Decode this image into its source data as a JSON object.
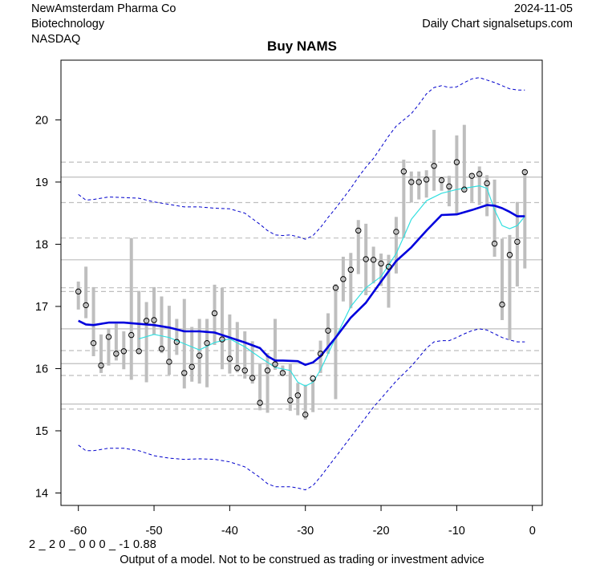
{
  "header": {
    "company": "NewAmsterdam Pharma Co",
    "sector": "Biotechnology",
    "exchange": "NASDAQ",
    "date": "2024-11-05",
    "source": "Daily Chart signalsetups.com"
  },
  "footer": {
    "code": "2 _ 2 0 _ 0 0 0 _ -1 0.88",
    "disclaimer": "Output of a model. Not to be construed as trading or investment advice"
  },
  "colors": {
    "bar": "#bebebe",
    "slow_ma": "#0000dd",
    "fast_ma": "#33e0e0",
    "band": "#0000cc",
    "level": "#bebebe"
  },
  "chart_data": {
    "type": "line",
    "title": "Buy NAMS",
    "xlabel": "",
    "ylabel": "",
    "xlim": [
      -62.3,
      1.3
    ],
    "ylim": [
      13.8,
      20.96
    ],
    "x_ticks": [
      -60,
      -50,
      -40,
      -30,
      -20,
      -10,
      0
    ],
    "y_ticks": [
      14,
      15,
      16,
      17,
      18,
      19,
      20
    ],
    "grid": false,
    "days": [
      -60,
      -59,
      -58,
      -57,
      -56,
      -55,
      -54,
      -53,
      -52,
      -51,
      -50,
      -49,
      -48,
      -47,
      -46,
      -45,
      -44,
      -43,
      -42,
      -41,
      -40,
      -39,
      -38,
      -37,
      -36,
      -35,
      -34,
      -33,
      -32,
      -31,
      -30,
      -29,
      -28,
      -27,
      -26,
      -25,
      -24,
      -23,
      -22,
      -21,
      -20,
      -19,
      -18,
      -17,
      -16,
      -15,
      -14,
      -13,
      -12,
      -11,
      -10,
      -9,
      -8,
      -7,
      -6,
      -5,
      -4,
      -3,
      -2,
      -1
    ],
    "close": [
      17.24,
      17.02,
      16.41,
      16.05,
      16.51,
      16.24,
      16.28,
      16.54,
      16.28,
      16.77,
      16.78,
      16.32,
      16.11,
      16.43,
      15.93,
      16.03,
      16.21,
      16.41,
      16.89,
      16.47,
      16.16,
      16.01,
      15.97,
      15.85,
      15.45,
      15.97,
      16.07,
      15.93,
      15.49,
      15.57,
      15.26,
      15.84,
      16.24,
      16.61,
      17.3,
      17.44,
      17.59,
      18.22,
      17.76,
      17.75,
      17.69,
      17.64,
      18.2,
      19.17,
      19.0,
      19.0,
      19.04,
      19.26,
      19.03,
      18.93,
      19.32,
      18.88,
      19.1,
      19.13,
      18.98,
      18.01,
      17.03,
      17.83,
      18.04,
      19.16
    ],
    "high": [
      17.4,
      17.64,
      17.31,
      16.55,
      16.65,
      16.72,
      16.6,
      18.1,
      17.25,
      17.07,
      17.31,
      17.16,
      17.01,
      16.8,
      17.12,
      16.67,
      16.8,
      16.8,
      17.35,
      17.3,
      16.87,
      16.75,
      16.6,
      16.44,
      16.07,
      16.25,
      16.8,
      16.05,
      16.07,
      15.77,
      15.74,
      15.84,
      16.45,
      16.89,
      17.36,
      17.8,
      17.86,
      18.39,
      18.33,
      17.96,
      17.85,
      17.83,
      18.44,
      19.36,
      19.17,
      19.17,
      19.19,
      19.84,
      19.08,
      19.1,
      19.75,
      19.92,
      19.14,
      19.25,
      19.11,
      19.04,
      18.09,
      18.15,
      18.68,
      19.21
    ],
    "low": [
      16.95,
      16.81,
      16.2,
      15.93,
      16.05,
      16.13,
      15.99,
      15.82,
      16.24,
      15.78,
      16.54,
      16.25,
      15.9,
      16.22,
      15.68,
      15.79,
      15.76,
      15.7,
      16.38,
      15.99,
      15.92,
      15.94,
      15.84,
      15.76,
      15.33,
      15.29,
      15.98,
      15.9,
      15.32,
      15.25,
      15.18,
      15.3,
      15.93,
      16.24,
      15.51,
      17.08,
      16.97,
      17.52,
      17.18,
      17.37,
      17.33,
      16.98,
      17.53,
      18.1,
      18.67,
      18.72,
      18.75,
      18.86,
      18.86,
      18.61,
      18.48,
      18.84,
      18.68,
      18.63,
      18.45,
      17.8,
      16.78,
      16.46,
      17.32,
      17.61
    ],
    "series": [
      {
        "name": "slow_ma",
        "x": [
          -60,
          -59,
          -58,
          -56,
          -54,
          -52,
          -50,
          -48,
          -46,
          -44,
          -42,
          -40,
          -38,
          -36,
          -35,
          -34,
          -33,
          -31,
          -30,
          -29,
          -28,
          -26,
          -24,
          -22,
          -20,
          -18,
          -16,
          -14,
          -12,
          -10,
          -8,
          -6,
          -5,
          -4,
          -3,
          -2,
          -1
        ],
        "y": [
          16.77,
          16.71,
          16.7,
          16.74,
          16.74,
          16.72,
          16.7,
          16.66,
          16.6,
          16.6,
          16.58,
          16.5,
          16.42,
          16.33,
          16.2,
          16.13,
          16.13,
          16.12,
          16.06,
          16.1,
          16.2,
          16.5,
          16.82,
          17.06,
          17.4,
          17.73,
          17.95,
          18.22,
          18.47,
          18.48,
          18.55,
          18.63,
          18.62,
          18.58,
          18.52,
          18.45,
          18.45
        ]
      },
      {
        "name": "fast_ma",
        "x": [
          -52,
          -50,
          -48,
          -46,
          -44,
          -42,
          -40,
          -38,
          -36,
          -34,
          -32,
          -31,
          -30,
          -29,
          -28,
          -26,
          -24,
          -22,
          -20,
          -18,
          -17,
          -16,
          -14,
          -12,
          -10,
          -8,
          -7,
          -6,
          -5,
          -4,
          -3,
          -2,
          -1
        ],
        "y": [
          16.48,
          16.55,
          16.5,
          16.4,
          16.3,
          16.42,
          16.48,
          16.35,
          16.18,
          16.02,
          15.97,
          15.78,
          15.72,
          15.78,
          15.98,
          16.5,
          17.0,
          17.3,
          17.48,
          17.85,
          18.12,
          18.4,
          18.7,
          18.82,
          18.88,
          18.92,
          18.94,
          18.9,
          18.55,
          18.3,
          18.25,
          18.3,
          18.45
        ]
      },
      {
        "name": "upper_band",
        "x": [
          -60,
          -59,
          -58,
          -56,
          -54,
          -52,
          -50,
          -48,
          -46,
          -44,
          -42,
          -40,
          -38,
          -36,
          -35,
          -34,
          -33,
          -32,
          -31,
          -30,
          -29,
          -28,
          -27,
          -26,
          -25,
          -24,
          -23,
          -22,
          -21,
          -20,
          -19,
          -18,
          -17,
          -16,
          -15,
          -14,
          -13,
          -12,
          -11,
          -10,
          -9,
          -8,
          -7,
          -6,
          -5,
          -4,
          -3,
          -2,
          -1
        ],
        "y": [
          18.8,
          18.71,
          18.72,
          18.76,
          18.75,
          18.74,
          18.68,
          18.64,
          18.6,
          18.6,
          18.58,
          18.57,
          18.5,
          18.32,
          18.22,
          18.15,
          18.14,
          18.15,
          18.12,
          18.08,
          18.14,
          18.27,
          18.43,
          18.58,
          18.74,
          18.9,
          19.08,
          19.24,
          19.38,
          19.56,
          19.74,
          19.9,
          20.0,
          20.1,
          20.25,
          20.42,
          20.52,
          20.55,
          20.52,
          20.53,
          20.6,
          20.66,
          20.68,
          20.64,
          20.6,
          20.55,
          20.5,
          20.48,
          20.48
        ]
      },
      {
        "name": "lower_band",
        "x": [
          -60,
          -59,
          -58,
          -56,
          -54,
          -52,
          -50,
          -48,
          -46,
          -44,
          -42,
          -40,
          -38,
          -36,
          -35,
          -34,
          -33,
          -32,
          -31,
          -30,
          -29,
          -28,
          -27,
          -26,
          -25,
          -24,
          -23,
          -22,
          -21,
          -20,
          -19,
          -18,
          -17,
          -16,
          -15,
          -14,
          -13,
          -12,
          -11,
          -10,
          -9,
          -8,
          -7,
          -6,
          -5,
          -4,
          -3,
          -2,
          -1
        ],
        "y": [
          14.77,
          14.68,
          14.68,
          14.72,
          14.72,
          14.68,
          14.6,
          14.56,
          14.54,
          14.55,
          14.54,
          14.5,
          14.42,
          14.25,
          14.15,
          14.1,
          14.1,
          14.1,
          14.08,
          14.05,
          14.12,
          14.26,
          14.42,
          14.58,
          14.74,
          14.9,
          15.06,
          15.22,
          15.38,
          15.52,
          15.66,
          15.8,
          15.92,
          16.04,
          16.18,
          16.33,
          16.43,
          16.45,
          16.45,
          16.5,
          16.56,
          16.61,
          16.64,
          16.62,
          16.56,
          16.5,
          16.46,
          16.43,
          16.43
        ]
      }
    ],
    "levels": [
      {
        "value": 19.32,
        "style": "dashed"
      },
      {
        "value": 19.08,
        "style": "solid"
      },
      {
        "value": 18.67,
        "style": "dashed"
      },
      {
        "value": 18.1,
        "style": "dashed"
      },
      {
        "value": 17.75,
        "style": "solid"
      },
      {
        "value": 17.3,
        "style": "dashed"
      },
      {
        "value": 17.24,
        "style": "dashed"
      },
      {
        "value": 16.64,
        "style": "solid"
      },
      {
        "value": 16.29,
        "style": "dashed"
      },
      {
        "value": 16.08,
        "style": "solid"
      },
      {
        "value": 15.89,
        "style": "dashed"
      },
      {
        "value": 15.43,
        "style": "solid"
      },
      {
        "value": 15.35,
        "style": "dashed"
      }
    ]
  }
}
